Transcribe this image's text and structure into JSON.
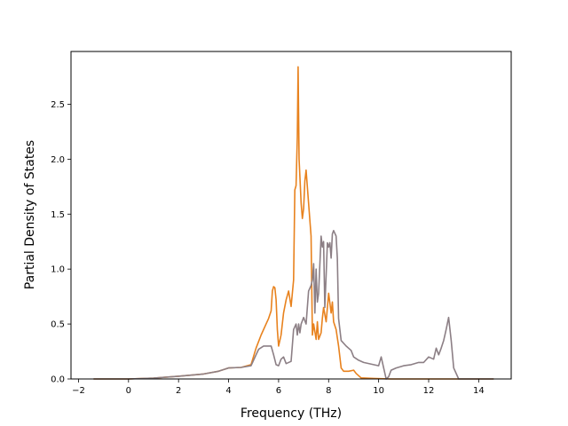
{
  "chart_data": {
    "type": "line",
    "xlabel": "Frequency (THz)",
    "ylabel": "Partial Density of States",
    "xlim": [
      -2.3,
      15.3
    ],
    "ylim": [
      0.0,
      2.98
    ],
    "xticks": [
      -2,
      0,
      2,
      4,
      6,
      8,
      10,
      12,
      14
    ],
    "xtick_labels": [
      "−2",
      "0",
      "2",
      "4",
      "6",
      "8",
      "10",
      "12",
      "14"
    ],
    "yticks": [
      0.0,
      0.5,
      1.0,
      1.5,
      2.0,
      2.5
    ],
    "ytick_labels": [
      "0.0",
      "0.5",
      "1.0",
      "1.5",
      "2.0",
      "2.5"
    ],
    "grid": false,
    "legend": "none",
    "series": [
      {
        "color": "#e8821e",
        "points": [
          [
            -1.4,
            0.0
          ],
          [
            0.0,
            0.0
          ],
          [
            1.0,
            0.008
          ],
          [
            2.0,
            0.025
          ],
          [
            3.0,
            0.045
          ],
          [
            3.6,
            0.07
          ],
          [
            4.0,
            0.1
          ],
          [
            4.5,
            0.105
          ],
          [
            4.9,
            0.13
          ],
          [
            5.1,
            0.28
          ],
          [
            5.3,
            0.4
          ],
          [
            5.5,
            0.5
          ],
          [
            5.6,
            0.55
          ],
          [
            5.7,
            0.62
          ],
          [
            5.75,
            0.8
          ],
          [
            5.8,
            0.84
          ],
          [
            5.85,
            0.83
          ],
          [
            5.9,
            0.72
          ],
          [
            5.95,
            0.45
          ],
          [
            6.0,
            0.3
          ],
          [
            6.1,
            0.4
          ],
          [
            6.2,
            0.6
          ],
          [
            6.3,
            0.72
          ],
          [
            6.4,
            0.8
          ],
          [
            6.5,
            0.66
          ],
          [
            6.6,
            0.9
          ],
          [
            6.65,
            1.72
          ],
          [
            6.7,
            1.76
          ],
          [
            6.75,
            2.2
          ],
          [
            6.78,
            2.84
          ],
          [
            6.82,
            2.0
          ],
          [
            6.9,
            1.6
          ],
          [
            6.95,
            1.46
          ],
          [
            7.0,
            1.55
          ],
          [
            7.05,
            1.8
          ],
          [
            7.1,
            1.9
          ],
          [
            7.2,
            1.6
          ],
          [
            7.3,
            1.3
          ],
          [
            7.35,
            0.4
          ],
          [
            7.4,
            0.5
          ],
          [
            7.5,
            0.36
          ],
          [
            7.55,
            0.52
          ],
          [
            7.6,
            0.36
          ],
          [
            7.7,
            0.42
          ],
          [
            7.75,
            0.55
          ],
          [
            7.8,
            0.65
          ],
          [
            7.9,
            0.52
          ],
          [
            8.0,
            0.78
          ],
          [
            8.1,
            0.6
          ],
          [
            8.15,
            0.7
          ],
          [
            8.2,
            0.52
          ],
          [
            8.3,
            0.45
          ],
          [
            8.4,
            0.3
          ],
          [
            8.5,
            0.1
          ],
          [
            8.6,
            0.07
          ],
          [
            8.8,
            0.07
          ],
          [
            9.0,
            0.08
          ],
          [
            9.1,
            0.05
          ],
          [
            9.3,
            0.01
          ],
          [
            9.8,
            0.005
          ],
          [
            10.5,
            0.0
          ],
          [
            13.0,
            0.0
          ],
          [
            14.6,
            0.0
          ]
        ]
      },
      {
        "color": "#8c7f85",
        "points": [
          [
            -1.4,
            0.0
          ],
          [
            0.0,
            0.0
          ],
          [
            1.0,
            0.008
          ],
          [
            2.0,
            0.025
          ],
          [
            3.0,
            0.045
          ],
          [
            3.6,
            0.07
          ],
          [
            4.0,
            0.1
          ],
          [
            4.5,
            0.105
          ],
          [
            4.9,
            0.12
          ],
          [
            5.1,
            0.22
          ],
          [
            5.2,
            0.27
          ],
          [
            5.4,
            0.3
          ],
          [
            5.7,
            0.3
          ],
          [
            5.8,
            0.22
          ],
          [
            5.9,
            0.13
          ],
          [
            6.0,
            0.12
          ],
          [
            6.1,
            0.18
          ],
          [
            6.2,
            0.2
          ],
          [
            6.3,
            0.14
          ],
          [
            6.5,
            0.16
          ],
          [
            6.6,
            0.45
          ],
          [
            6.7,
            0.5
          ],
          [
            6.75,
            0.4
          ],
          [
            6.8,
            0.5
          ],
          [
            6.85,
            0.42
          ],
          [
            6.9,
            0.5
          ],
          [
            7.0,
            0.56
          ],
          [
            7.1,
            0.5
          ],
          [
            7.2,
            0.8
          ],
          [
            7.3,
            0.85
          ],
          [
            7.35,
            0.9
          ],
          [
            7.4,
            1.05
          ],
          [
            7.45,
            0.6
          ],
          [
            7.5,
            1.0
          ],
          [
            7.55,
            0.7
          ],
          [
            7.6,
            0.78
          ],
          [
            7.7,
            1.3
          ],
          [
            7.75,
            1.2
          ],
          [
            7.8,
            1.25
          ],
          [
            7.85,
            0.65
          ],
          [
            7.9,
            0.95
          ],
          [
            7.95,
            1.24
          ],
          [
            8.0,
            1.2
          ],
          [
            8.05,
            1.24
          ],
          [
            8.1,
            1.1
          ],
          [
            8.15,
            1.32
          ],
          [
            8.2,
            1.35
          ],
          [
            8.3,
            1.3
          ],
          [
            8.35,
            1.1
          ],
          [
            8.4,
            0.55
          ],
          [
            8.5,
            0.35
          ],
          [
            8.7,
            0.3
          ],
          [
            8.9,
            0.26
          ],
          [
            9.0,
            0.2
          ],
          [
            9.2,
            0.17
          ],
          [
            9.4,
            0.15
          ],
          [
            9.8,
            0.13
          ],
          [
            10.0,
            0.12
          ],
          [
            10.1,
            0.2
          ],
          [
            10.2,
            0.1
          ],
          [
            10.3,
            0.0
          ],
          [
            10.4,
            0.02
          ],
          [
            10.5,
            0.08
          ],
          [
            10.7,
            0.1
          ],
          [
            11.0,
            0.12
          ],
          [
            11.3,
            0.13
          ],
          [
            11.6,
            0.15
          ],
          [
            11.8,
            0.15
          ],
          [
            12.0,
            0.2
          ],
          [
            12.2,
            0.18
          ],
          [
            12.3,
            0.28
          ],
          [
            12.4,
            0.22
          ],
          [
            12.5,
            0.28
          ],
          [
            12.6,
            0.35
          ],
          [
            12.7,
            0.45
          ],
          [
            12.8,
            0.56
          ],
          [
            12.9,
            0.35
          ],
          [
            13.0,
            0.1
          ],
          [
            13.2,
            0.0
          ],
          [
            14.6,
            0.0
          ]
        ]
      }
    ]
  }
}
